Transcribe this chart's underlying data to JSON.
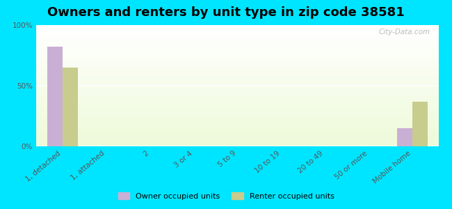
{
  "title": "Owners and renters by unit type in zip code 38581",
  "categories": [
    "1, detached",
    "1, attached",
    "2",
    "3 or 4",
    "5 to 9",
    "10 to 19",
    "20 to 49",
    "50 or more",
    "Mobile home"
  ],
  "owner_values": [
    82,
    0,
    0,
    0,
    0,
    0,
    0,
    0,
    15
  ],
  "renter_values": [
    65,
    0,
    0,
    0,
    0,
    0,
    0,
    0,
    37
  ],
  "owner_color": "#c9afd4",
  "renter_color": "#c8cc8c",
  "outer_bg": "#00e5ff",
  "ylabel_ticks": [
    "0%",
    "50%",
    "100%"
  ],
  "yticks": [
    0,
    50,
    100
  ],
  "ylim": [
    0,
    100
  ],
  "bar_width": 0.35,
  "title_fontsize": 13,
  "tick_fontsize": 7.5,
  "legend_labels": [
    "Owner occupied units",
    "Renter occupied units"
  ],
  "watermark": "City-Data.com"
}
